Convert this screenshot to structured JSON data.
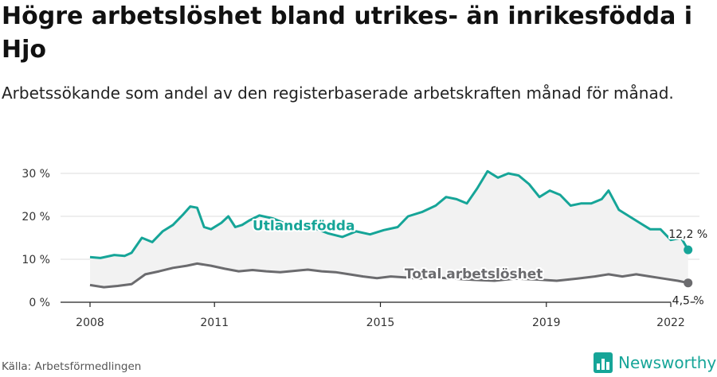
{
  "title": "Högre arbetslöshet bland utrikes- än inrikesfödda i Hjo",
  "subtitle": "Arbetssökande som andel av den registerbaserade arbetskraften månad för månad.",
  "source": "Källa: Arbetsförmedlingen",
  "brand": {
    "name": "Newsworthy",
    "icon": "newsworthy-bar-chart-icon"
  },
  "colors": {
    "foreign": "#16a598",
    "total": "#6b6b6e",
    "band": "#f2f2f2",
    "grid": "#dcdcdc"
  },
  "chart_data": {
    "type": "line",
    "title": "Högre arbetslöshet bland utrikes- än inrikesfödda i Hjo",
    "subtitle": "Arbetssökande som andel av den registerbaserade arbetskraften månad för månad.",
    "xlabel": "",
    "ylabel": "",
    "x_ticks": [
      "2008",
      "2011",
      "2015",
      "2019",
      "2022"
    ],
    "y_ticks": [
      "0 %",
      "10 %",
      "20 %",
      "30 %"
    ],
    "ylim": [
      0,
      30
    ],
    "xlim": [
      "2008-01",
      "2022-01"
    ],
    "grid": true,
    "legend": "inline labels",
    "series": [
      {
        "name": "Utlandsfödda",
        "end_label": "12,2 %",
        "points": [
          [
            "2008-01",
            10.5
          ],
          [
            "2008-04",
            10.3
          ],
          [
            "2008-08",
            11.0
          ],
          [
            "2008-11",
            10.8
          ],
          [
            "2009-01",
            11.5
          ],
          [
            "2009-04",
            15.0
          ],
          [
            "2009-07",
            14.0
          ],
          [
            "2009-10",
            16.5
          ],
          [
            "2010-01",
            18.0
          ],
          [
            "2010-04",
            20.5
          ],
          [
            "2010-06",
            22.3
          ],
          [
            "2010-08",
            22.0
          ],
          [
            "2010-10",
            17.5
          ],
          [
            "2010-12",
            17.0
          ],
          [
            "2011-03",
            18.5
          ],
          [
            "2011-05",
            20.0
          ],
          [
            "2011-07",
            17.5
          ],
          [
            "2011-09",
            18.0
          ],
          [
            "2011-11",
            19.0
          ],
          [
            "2012-02",
            20.2
          ],
          [
            "2012-06",
            19.5
          ],
          [
            "2012-09",
            18.5
          ],
          [
            "2013-01",
            18.0
          ],
          [
            "2013-06",
            17.2
          ],
          [
            "2013-10",
            16.0
          ],
          [
            "2014-02",
            15.2
          ],
          [
            "2014-06",
            16.5
          ],
          [
            "2014-10",
            15.8
          ],
          [
            "2015-02",
            16.8
          ],
          [
            "2015-06",
            17.5
          ],
          [
            "2015-09",
            20.0
          ],
          [
            "2016-01",
            21.0
          ],
          [
            "2016-05",
            22.5
          ],
          [
            "2016-08",
            24.5
          ],
          [
            "2016-11",
            24.0
          ],
          [
            "2017-02",
            23.0
          ],
          [
            "2017-05",
            26.5
          ],
          [
            "2017-08",
            30.5
          ],
          [
            "2017-11",
            29.0
          ],
          [
            "2018-02",
            30.0
          ],
          [
            "2018-05",
            29.5
          ],
          [
            "2018-08",
            27.5
          ],
          [
            "2018-11",
            24.5
          ],
          [
            "2019-02",
            26.0
          ],
          [
            "2019-05",
            25.0
          ],
          [
            "2019-08",
            22.5
          ],
          [
            "2019-11",
            23.0
          ],
          [
            "2020-02",
            23.0
          ],
          [
            "2020-05",
            24.0
          ],
          [
            "2020-07",
            26.0
          ],
          [
            "2020-10",
            21.5
          ],
          [
            "2021-01",
            20.0
          ],
          [
            "2021-04",
            18.5
          ],
          [
            "2021-07",
            17.0
          ],
          [
            "2021-10",
            17.0
          ],
          [
            "2022-01",
            14.5
          ],
          [
            "2022-04",
            15.0
          ],
          [
            "2022-06",
            12.2
          ]
        ]
      },
      {
        "name": "Total arbetslöshet",
        "end_label": "4,5 %",
        "points": [
          [
            "2008-01",
            4.0
          ],
          [
            "2008-05",
            3.5
          ],
          [
            "2008-09",
            3.8
          ],
          [
            "2009-01",
            4.2
          ],
          [
            "2009-05",
            6.5
          ],
          [
            "2009-09",
            7.2
          ],
          [
            "2010-01",
            8.0
          ],
          [
            "2010-05",
            8.5
          ],
          [
            "2010-08",
            9.0
          ],
          [
            "2010-12",
            8.5
          ],
          [
            "2011-04",
            7.8
          ],
          [
            "2011-08",
            7.2
          ],
          [
            "2011-12",
            7.5
          ],
          [
            "2012-04",
            7.2
          ],
          [
            "2012-08",
            7.0
          ],
          [
            "2012-12",
            7.3
          ],
          [
            "2013-04",
            7.6
          ],
          [
            "2013-08",
            7.2
          ],
          [
            "2013-12",
            7.0
          ],
          [
            "2014-04",
            6.5
          ],
          [
            "2014-08",
            6.0
          ],
          [
            "2014-12",
            5.6
          ],
          [
            "2015-04",
            6.0
          ],
          [
            "2015-08",
            5.8
          ],
          [
            "2015-12",
            5.5
          ],
          [
            "2016-04",
            5.8
          ],
          [
            "2016-10",
            5.5
          ],
          [
            "2017-04",
            5.2
          ],
          [
            "2017-10",
            5.0
          ],
          [
            "2018-04",
            5.5
          ],
          [
            "2018-10",
            5.3
          ],
          [
            "2019-04",
            5.0
          ],
          [
            "2019-10",
            5.5
          ],
          [
            "2020-03",
            6.0
          ],
          [
            "2020-07",
            6.5
          ],
          [
            "2020-11",
            6.0
          ],
          [
            "2021-03",
            6.5
          ],
          [
            "2021-07",
            6.0
          ],
          [
            "2021-11",
            5.5
          ],
          [
            "2022-03",
            5.0
          ],
          [
            "2022-06",
            4.5
          ]
        ]
      }
    ]
  }
}
